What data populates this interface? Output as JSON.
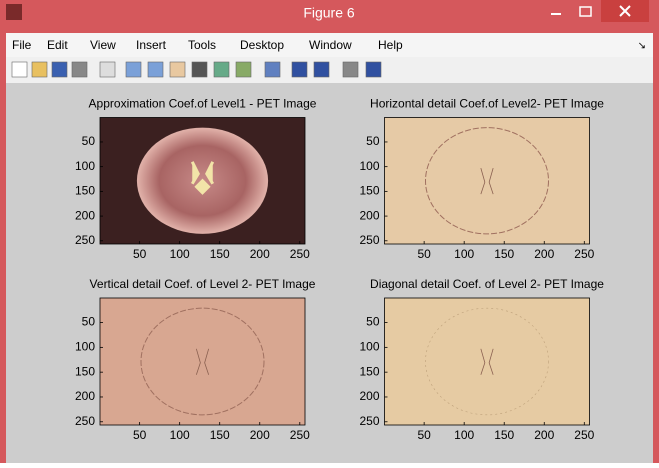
{
  "window": {
    "title": "Figure 6"
  },
  "menu": [
    "File",
    "Edit",
    "View",
    "Insert",
    "Tools",
    "Desktop",
    "Window",
    "Help"
  ],
  "plots": [
    {
      "title": "Approximation Coef.of Level1 - PET Image",
      "xlim": [
        0.5,
        256.5
      ],
      "ylim": [
        0.5,
        256.5
      ],
      "xticks": [
        50,
        100,
        150,
        200,
        250
      ],
      "yticks": [
        50,
        100,
        150,
        200,
        250
      ]
    },
    {
      "title": "Horizontal detail Coef.of Level2- PET Image",
      "xlim": [
        0.5,
        256.5
      ],
      "ylim": [
        0.5,
        256.5
      ],
      "xticks": [
        50,
        100,
        150,
        200,
        250
      ],
      "yticks": [
        50,
        100,
        150,
        200,
        250
      ]
    },
    {
      "title": "Vertical detail Coef. of Level 2- PET Image",
      "xlim": [
        0.5,
        256.5
      ],
      "ylim": [
        0.5,
        256.5
      ],
      "xticks": [
        50,
        100,
        150,
        200,
        250
      ],
      "yticks": [
        50,
        100,
        150,
        200,
        250
      ]
    },
    {
      "title": "Diagonal detail Coef. of Level 2- PET Image",
      "xlim": [
        0.5,
        256.5
      ],
      "ylim": [
        0.5,
        256.5
      ],
      "xticks": [
        50,
        100,
        150,
        200,
        250
      ],
      "yticks": [
        50,
        100,
        150,
        200,
        250
      ]
    }
  ]
}
